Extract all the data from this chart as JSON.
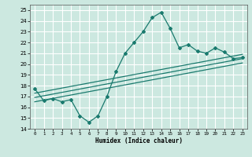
{
  "title": "",
  "xlabel": "Humidex (Indice chaleur)",
  "xlim": [
    -0.5,
    23.5
  ],
  "ylim": [
    14,
    25.5
  ],
  "xticks": [
    0,
    1,
    2,
    3,
    4,
    5,
    6,
    7,
    8,
    9,
    10,
    11,
    12,
    13,
    14,
    15,
    16,
    17,
    18,
    19,
    20,
    21,
    22,
    23
  ],
  "yticks": [
    14,
    15,
    16,
    17,
    18,
    19,
    20,
    21,
    22,
    23,
    24,
    25
  ],
  "bg_color": "#cce8e0",
  "grid_color": "#ffffff",
  "line_color": "#1a7a6e",
  "main_line_x": [
    0,
    1,
    2,
    3,
    4,
    5,
    6,
    7,
    8,
    9,
    10,
    11,
    12,
    13,
    14,
    15,
    16,
    17,
    18,
    19,
    20,
    21,
    22,
    23
  ],
  "main_line_y": [
    17.7,
    16.6,
    16.8,
    16.5,
    16.7,
    15.2,
    14.6,
    15.2,
    17.0,
    19.3,
    21.0,
    22.0,
    23.0,
    24.3,
    24.8,
    23.3,
    21.5,
    21.8,
    21.2,
    21.0,
    21.5,
    21.1,
    20.5,
    20.6
  ],
  "trend1_x": [
    0,
    23
  ],
  "trend1_y": [
    16.5,
    20.1
  ],
  "trend2_x": [
    0,
    23
  ],
  "trend2_y": [
    16.9,
    20.5
  ],
  "trend3_x": [
    0,
    23
  ],
  "trend3_y": [
    17.3,
    20.9
  ]
}
